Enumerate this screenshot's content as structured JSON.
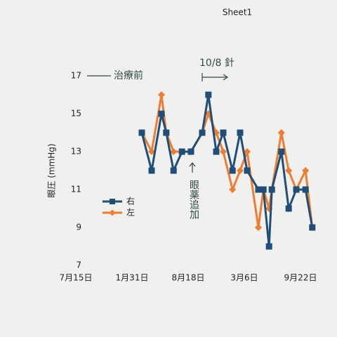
{
  "chart_data": {
    "type": "line",
    "title": "Sheet1",
    "ylabel": "眼圧 (mmHg)",
    "x": [
      235,
      270,
      305,
      322,
      348,
      378,
      410,
      450,
      472,
      500,
      525,
      558,
      585,
      610,
      650,
      668,
      688,
      698,
      732,
      758,
      785,
      818,
      842
    ],
    "series": [
      {
        "name": "右",
        "color": "#1f4e79",
        "marker": "square",
        "values": [
          14,
          12,
          15,
          14,
          12,
          13,
          13,
          14,
          16,
          13,
          14,
          12,
          14,
          12,
          11,
          11,
          8,
          11,
          13,
          10,
          11,
          11,
          9
        ]
      },
      {
        "name": "左",
        "color": "#ed7d31",
        "marker": "diamond",
        "values": [
          14,
          13,
          16,
          14,
          13,
          13,
          13,
          14,
          15,
          14,
          13,
          11,
          12,
          13,
          9,
          11,
          10,
          11,
          14,
          12,
          11,
          12,
          9
        ]
      }
    ],
    "xlim": [
      -20,
      850
    ],
    "xticks": [
      {
        "value": 0,
        "label": "7月15日"
      },
      {
        "value": 200,
        "label": "1月31日"
      },
      {
        "value": 400,
        "label": "8月18日"
      },
      {
        "value": 600,
        "label": "3月6日"
      },
      {
        "value": 800,
        "label": "9月22日"
      }
    ],
    "ylim": [
      7,
      17
    ],
    "yticks": [
      7,
      9,
      11,
      13,
      15,
      17
    ],
    "annotations": [
      "治療前",
      "10/8 針",
      "眼薬追加"
    ]
  }
}
